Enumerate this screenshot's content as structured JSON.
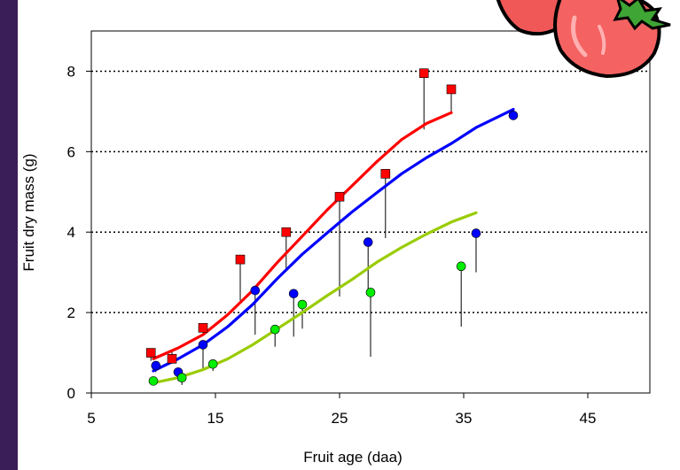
{
  "chart_data": {
    "type": "scatter",
    "xlabel": "Fruit age (daa)",
    "ylabel": "Fruit dry mass (g)",
    "xlim": [
      5,
      50
    ],
    "ylim": [
      0,
      9
    ],
    "xticks": [
      5,
      15,
      25,
      35,
      45
    ],
    "yticks": [
      0,
      2,
      4,
      6,
      8
    ],
    "xtick_labels": [
      "5",
      "15",
      "25",
      "35",
      "45"
    ],
    "ytick_labels": [
      "0",
      "2",
      "4",
      "6",
      "8"
    ],
    "grid": "horizontal-dotted",
    "legend": "none",
    "series": [
      {
        "color": "#ff0000",
        "marker": "square",
        "points": [
          {
            "x": 9.8,
            "y": 1.0,
            "model": 0.8
          },
          {
            "x": 11.5,
            "y": 0.85,
            "model": 1.05
          },
          {
            "x": 14.0,
            "y": 1.62,
            "model": 1.5
          },
          {
            "x": 17.0,
            "y": 3.32,
            "model": 2.3
          },
          {
            "x": 20.7,
            "y": 4.0,
            "model": 3.05
          },
          {
            "x": 25.0,
            "y": 4.88,
            "model": 2.4
          },
          {
            "x": 28.7,
            "y": 5.45,
            "model": 3.85
          },
          {
            "x": 31.8,
            "y": 7.95,
            "model": 6.55
          },
          {
            "x": 34.0,
            "y": 7.55,
            "model": 6.95
          }
        ],
        "curve": [
          [
            10,
            0.85
          ],
          [
            12,
            1.12
          ],
          [
            14,
            1.45
          ],
          [
            16,
            1.95
          ],
          [
            18,
            2.55
          ],
          [
            20,
            3.25
          ],
          [
            22,
            3.9
          ],
          [
            24,
            4.55
          ],
          [
            26,
            5.15
          ],
          [
            28,
            5.75
          ],
          [
            30,
            6.3
          ],
          [
            32,
            6.7
          ],
          [
            34,
            6.97
          ]
        ]
      },
      {
        "color": "#0000ff",
        "marker": "circle",
        "points": [
          {
            "x": 10.2,
            "y": 0.68,
            "model": 0.52
          },
          {
            "x": 12.0,
            "y": 0.52,
            "model": 0.3
          },
          {
            "x": 14.0,
            "y": 1.2,
            "model": 0.55
          },
          {
            "x": 18.2,
            "y": 2.55,
            "model": 1.45
          },
          {
            "x": 21.3,
            "y": 2.47,
            "model": 1.4
          },
          {
            "x": 27.3,
            "y": 3.75,
            "model": 2.5
          },
          {
            "x": 36.0,
            "y": 3.97,
            "model": 3.0
          },
          {
            "x": 39.0,
            "y": 6.9,
            "model": 6.9
          }
        ],
        "curve": [
          [
            10,
            0.55
          ],
          [
            12,
            0.85
          ],
          [
            14,
            1.2
          ],
          [
            16,
            1.65
          ],
          [
            18,
            2.2
          ],
          [
            20,
            2.85
          ],
          [
            22,
            3.45
          ],
          [
            24,
            3.98
          ],
          [
            26,
            4.5
          ],
          [
            28,
            4.98
          ],
          [
            30,
            5.45
          ],
          [
            32,
            5.85
          ],
          [
            34,
            6.2
          ],
          [
            36,
            6.6
          ],
          [
            39,
            7.05
          ]
        ]
      },
      {
        "color": "#00ee00",
        "marker": "circle",
        "points": [
          {
            "x": 10.0,
            "y": 0.3,
            "model": 0.3
          },
          {
            "x": 12.3,
            "y": 0.38,
            "model": 0.2
          },
          {
            "x": 14.8,
            "y": 0.72,
            "model": 0.55
          },
          {
            "x": 19.8,
            "y": 1.58,
            "model": 1.15
          },
          {
            "x": 22.0,
            "y": 2.2,
            "model": 1.6
          },
          {
            "x": 27.5,
            "y": 2.5,
            "model": 0.9
          },
          {
            "x": 34.8,
            "y": 3.15,
            "model": 1.65
          }
        ],
        "curve": [
          [
            10,
            0.25
          ],
          [
            12,
            0.38
          ],
          [
            14,
            0.58
          ],
          [
            16,
            0.85
          ],
          [
            18,
            1.2
          ],
          [
            20,
            1.6
          ],
          [
            22,
            2.0
          ],
          [
            24,
            2.42
          ],
          [
            26,
            2.82
          ],
          [
            28,
            3.25
          ],
          [
            30,
            3.62
          ],
          [
            32,
            3.95
          ],
          [
            34,
            4.25
          ],
          [
            36,
            4.48
          ]
        ]
      }
    ],
    "curve_colors": [
      "#ff0000",
      "#0000ff",
      "#99cc00"
    ],
    "decoration": "tomato-icon"
  }
}
